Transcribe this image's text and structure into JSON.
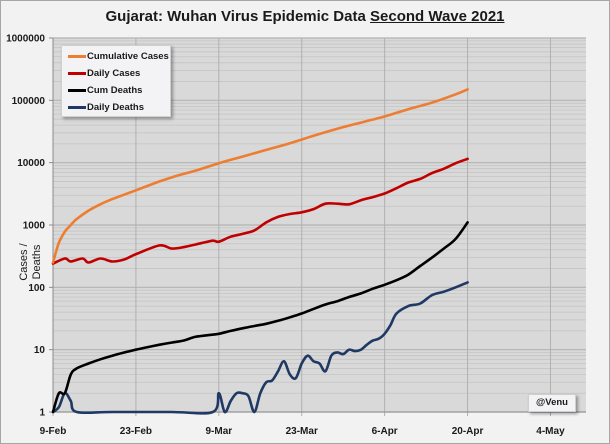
{
  "chart_data": {
    "type": "line",
    "title_main": "Gujarat: Wuhan Virus Epidemic Data ",
    "title_underlined": "Second Wave 2021",
    "ylabel": "Cases / Deaths",
    "yscale": "log",
    "ylim": [
      1,
      1000000
    ],
    "y_ticks": [
      "1",
      "10",
      "100",
      "1000",
      "10000",
      "100000",
      "1000000"
    ],
    "y_tick_values": [
      1,
      10,
      100,
      1000,
      10000,
      100000,
      1000000
    ],
    "x_unit": "days since 9-Feb-2021",
    "xlim": [
      0,
      90
    ],
    "x_ticks": [
      "9-Feb",
      "23-Feb",
      "9-Mar",
      "23-Mar",
      "6-Apr",
      "20-Apr",
      "4-May"
    ],
    "x_tick_values": [
      0,
      14,
      28,
      42,
      56,
      70,
      84
    ],
    "grid": true,
    "legend_position": "top-left",
    "credit": "@Venu",
    "series": [
      {
        "name": "Cumulative Cases",
        "color": "#ed7d31",
        "x": [
          0,
          1,
          2,
          3,
          4,
          6,
          8,
          10,
          14,
          18,
          21,
          24,
          28,
          32,
          36,
          40,
          44,
          48,
          52,
          56,
          60,
          64,
          68,
          70
        ],
        "y": [
          250,
          520,
          780,
          1000,
          1250,
          1700,
          2150,
          2600,
          3600,
          5000,
          6200,
          7400,
          9800,
          12500,
          16000,
          20500,
          27000,
          35000,
          44000,
          55000,
          72000,
          92000,
          125000,
          150000
        ]
      },
      {
        "name": "Daily Cases",
        "color": "#c00000",
        "x": [
          0,
          2,
          3,
          5,
          6,
          8,
          10,
          12,
          14,
          18,
          20,
          22,
          25,
          27,
          28,
          30,
          32,
          34,
          36,
          38,
          40,
          42,
          44,
          46,
          48,
          50,
          52,
          54,
          56,
          58,
          60,
          62,
          64,
          66,
          68,
          70
        ],
        "y": [
          240,
          290,
          260,
          290,
          250,
          290,
          260,
          280,
          340,
          470,
          420,
          440,
          510,
          560,
          540,
          650,
          720,
          820,
          1100,
          1350,
          1500,
          1600,
          1800,
          2200,
          2200,
          2150,
          2500,
          2800,
          3200,
          3900,
          4800,
          5500,
          6800,
          8000,
          9800,
          11500
        ]
      },
      {
        "name": "Cum Deaths",
        "color": "#000000",
        "x": [
          0,
          1,
          2,
          3,
          4,
          6,
          8,
          10,
          12,
          14,
          16,
          18,
          20,
          22,
          24,
          26,
          28,
          30,
          32,
          34,
          36,
          38,
          40,
          42,
          44,
          46,
          48,
          50,
          52,
          54,
          56,
          58,
          60,
          62,
          64,
          66,
          68,
          70
        ],
        "y": [
          1,
          2,
          2,
          4,
          5,
          6,
          7,
          8,
          9,
          10,
          11,
          12,
          13,
          14,
          16,
          17,
          18,
          20,
          22,
          24,
          26,
          29,
          33,
          38,
          45,
          53,
          60,
          70,
          80,
          95,
          110,
          130,
          160,
          220,
          300,
          420,
          600,
          1100
        ]
      },
      {
        "name": "Daily Deaths",
        "color": "#1f3864",
        "x": [
          0,
          1,
          2,
          3,
          4,
          10,
          20,
          27,
          28,
          29,
          30,
          31,
          32,
          33,
          34,
          35,
          36,
          37,
          38,
          39,
          40,
          41,
          42,
          43,
          44,
          45,
          46,
          47,
          48,
          49,
          50,
          51,
          52,
          53,
          54,
          55,
          56,
          57,
          58,
          60,
          62,
          64,
          66,
          68,
          70
        ],
        "y": [
          1,
          1.2,
          2,
          1.5,
          1,
          1,
          1,
          1,
          2,
          1,
          1.5,
          2,
          2,
          1.8,
          1,
          2,
          3,
          3.2,
          4.5,
          6.5,
          4,
          3.5,
          6,
          8,
          6.5,
          6,
          4.5,
          8,
          9,
          8.5,
          10,
          9.5,
          10,
          12,
          14,
          15,
          18,
          25,
          38,
          50,
          55,
          75,
          85,
          100,
          120
        ]
      }
    ]
  }
}
